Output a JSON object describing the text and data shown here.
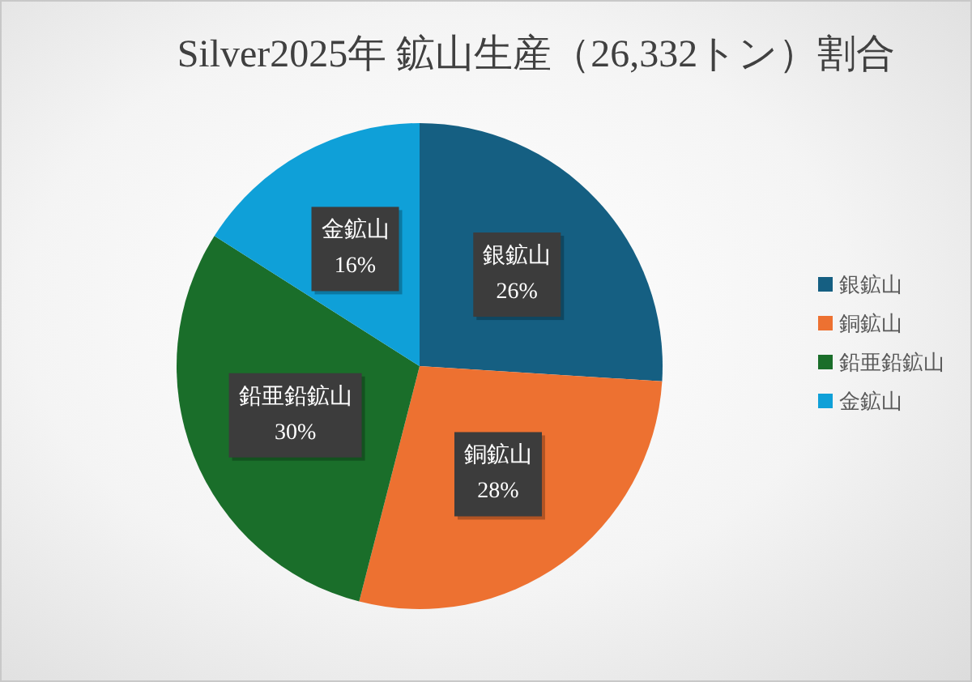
{
  "chart_data": {
    "type": "pie",
    "title": "Silver2025年 鉱山生産（26,332トン）割合",
    "categories": [
      "銀鉱山",
      "銅鉱山",
      "鉛亜鉛鉱山",
      "金鉱山"
    ],
    "values": [
      26,
      28,
      30,
      16
    ],
    "colors": [
      "#155f82",
      "#ed7131",
      "#1a6e2a",
      "#0fa0d8"
    ],
    "value_labels": [
      "26%",
      "28%",
      "30%",
      "16%"
    ],
    "legend": "right"
  }
}
